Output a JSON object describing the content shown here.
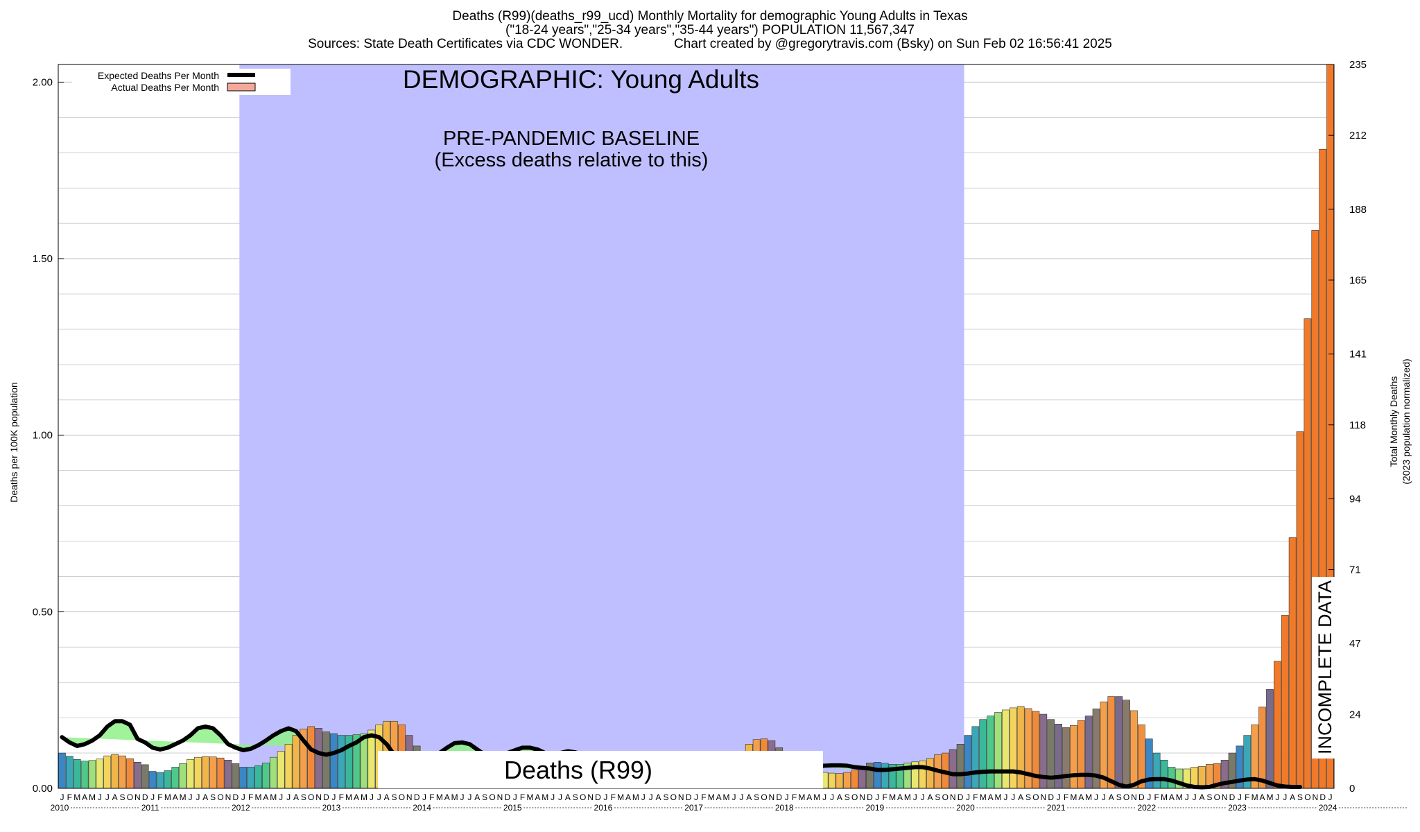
{
  "header": {
    "title_line1": "Deaths (R99)(deaths_r99_ucd) Monthly Mortality for demographic Young Adults in Texas",
    "title_line2": "(\"18-24 years\",\"25-34 years\",\"35-44 years\") POPULATION 11,567,347",
    "title_line3": "Sources: State Death Certificates via CDC WONDER.              Chart created by @gregorytravis.com (Bsky) on Sun Feb 02 16:56:41 2025"
  },
  "colors": {
    "baseline_band": "#bfbfff",
    "expected_line": "#000000",
    "incomplete_hatch": "#888888",
    "grid": "#c8c8c8"
  },
  "chart_data": {
    "type": "bar",
    "title": "Deaths (R99)(deaths_r99_ucd) Monthly Mortality for demographic Young Adults in Texas",
    "ylabel": "Deaths per 100K population",
    "y2label_line1": "Total Monthly Deaths",
    "y2label_line2": "(2023 population normalized)",
    "ylim": [
      0,
      2.05
    ],
    "y2lim": [
      0,
      235
    ],
    "yticks": [
      "0.00",
      "0.50",
      "1.00",
      "1.50",
      "2.00"
    ],
    "y2ticks": [
      "0",
      "24",
      "47",
      "71",
      "94",
      "118",
      "141",
      "165",
      "188",
      "212",
      "235"
    ],
    "grid": true,
    "legend_position": "top-left",
    "legend": {
      "expected": "Expected Deaths Per Month",
      "actual": "Actual Deaths Per Month"
    },
    "month_letters": [
      "J",
      "F",
      "M",
      "A",
      "M",
      "J",
      "J",
      "A",
      "S",
      "O",
      "N",
      "D"
    ],
    "years": [
      "2010",
      "2011",
      "2012",
      "2013",
      "2014",
      "2015",
      "2016",
      "2017",
      "2018",
      "2019",
      "2020",
      "2021",
      "2022",
      "2023",
      "2024"
    ],
    "annotations": {
      "demographic": "DEMOGRAPHIC: Young Adults",
      "baseline_line1": "PRE-PANDEMIC BASELINE",
      "baseline_line2": "(Excess deaths relative to this)",
      "cause_box": "Deaths (R99)",
      "incomplete": "INCOMPLETE DATA"
    },
    "baseline_period": {
      "start": "2012-01",
      "end": "2019-12"
    },
    "incomplete_period": {
      "start": "2024-04",
      "end": "2024-12"
    },
    "actual_series": [
      0.1,
      0.091,
      0.082,
      0.077,
      0.079,
      0.083,
      0.092,
      0.096,
      0.092,
      0.084,
      0.074,
      0.067,
      0.048,
      0.045,
      0.05,
      0.06,
      0.07,
      0.082,
      0.088,
      0.09,
      0.089,
      0.086,
      0.08,
      0.07,
      0.06,
      0.06,
      0.064,
      0.072,
      0.088,
      0.105,
      0.125,
      0.15,
      0.168,
      0.175,
      0.17,
      0.16,
      0.155,
      0.15,
      0.15,
      0.152,
      0.155,
      0.165,
      0.18,
      0.19,
      0.19,
      0.18,
      0.15,
      0.12,
      0.1,
      0.09,
      0.085,
      0.08,
      0.078,
      0.08,
      0.085,
      0.09,
      0.085,
      0.08,
      0.075,
      0.072,
      0.07,
      0.068,
      0.07,
      0.072,
      0.075,
      0.08,
      0.085,
      0.088,
      0.086,
      0.082,
      0.08,
      0.076,
      0.072,
      0.07,
      0.07,
      0.072,
      0.074,
      0.077,
      0.08,
      0.082,
      0.08,
      0.078,
      0.076,
      0.074,
      0.072,
      0.07,
      0.07,
      0.074,
      0.08,
      0.09,
      0.105,
      0.125,
      0.138,
      0.14,
      0.135,
      0.115,
      0.068,
      0.062,
      0.055,
      0.05,
      0.048,
      0.045,
      0.043,
      0.042,
      0.045,
      0.052,
      0.062,
      0.072,
      0.074,
      0.071,
      0.068,
      0.068,
      0.072,
      0.075,
      0.078,
      0.085,
      0.095,
      0.1,
      0.11,
      0.125,
      0.15,
      0.175,
      0.195,
      0.205,
      0.215,
      0.222,
      0.228,
      0.232,
      0.226,
      0.218,
      0.21,
      0.195,
      0.182,
      0.172,
      0.178,
      0.192,
      0.205,
      0.225,
      0.245,
      0.26,
      0.26,
      0.25,
      0.22,
      0.18,
      0.14,
      0.1,
      0.08,
      0.06,
      0.055,
      0.055,
      0.06,
      0.062,
      0.068,
      0.07,
      0.08,
      0.1,
      0.12,
      0.15,
      0.18,
      0.23,
      0.28,
      0.36,
      0.49,
      0.71,
      1.01,
      1.33,
      1.58,
      1.81,
      2.05
    ],
    "expected_series": [
      0.145,
      0.13,
      0.12,
      0.125,
      0.135,
      0.15,
      0.175,
      0.19,
      0.19,
      0.18,
      0.14,
      0.13,
      0.115,
      0.11,
      0.115,
      0.125,
      0.135,
      0.15,
      0.17,
      0.175,
      0.17,
      0.15,
      0.125,
      0.115,
      0.108,
      0.112,
      0.122,
      0.135,
      0.15,
      0.162,
      0.17,
      0.162,
      0.135,
      0.11,
      0.1,
      0.095,
      0.1,
      0.108,
      0.12,
      0.13,
      0.145,
      0.15,
      0.145,
      0.125,
      0.095,
      0.085,
      0.08,
      0.078,
      0.08,
      0.09,
      0.1,
      0.115,
      0.128,
      0.13,
      0.125,
      0.11,
      0.095,
      0.092,
      0.095,
      0.1,
      0.108,
      0.115,
      0.115,
      0.11,
      0.1,
      0.098,
      0.1,
      0.105,
      0.102,
      0.095,
      0.09,
      0.088,
      0.088,
      0.09,
      0.092,
      0.094,
      0.092,
      0.09,
      0.085,
      0.082,
      0.082,
      0.085,
      0.088,
      0.09,
      0.09,
      0.09,
      0.088,
      0.086,
      0.084,
      0.08,
      0.078,
      0.075,
      0.072,
      0.07,
      0.068,
      0.066,
      0.06,
      0.058,
      0.058,
      0.06,
      0.062,
      0.064,
      0.065,
      0.065,
      0.064,
      0.06,
      0.058,
      0.056,
      0.052,
      0.052,
      0.054,
      0.056,
      0.058,
      0.06,
      0.06,
      0.056,
      0.05,
      0.045,
      0.04,
      0.04,
      0.042,
      0.045,
      0.047,
      0.048,
      0.048,
      0.048,
      0.048,
      0.045,
      0.04,
      0.035,
      0.032,
      0.03,
      0.032,
      0.035,
      0.037,
      0.038,
      0.038,
      0.036,
      0.03,
      0.02,
      0.01,
      0.005,
      0.01,
      0.02,
      0.025,
      0.026,
      0.026,
      0.022,
      0.015,
      0.008,
      0.004,
      0.003,
      0.004,
      0.01,
      0.015,
      0.018,
      0.022,
      0.025,
      0.026,
      0.022,
      0.015,
      0.008,
      0.005,
      0.004,
      0.004
    ]
  }
}
